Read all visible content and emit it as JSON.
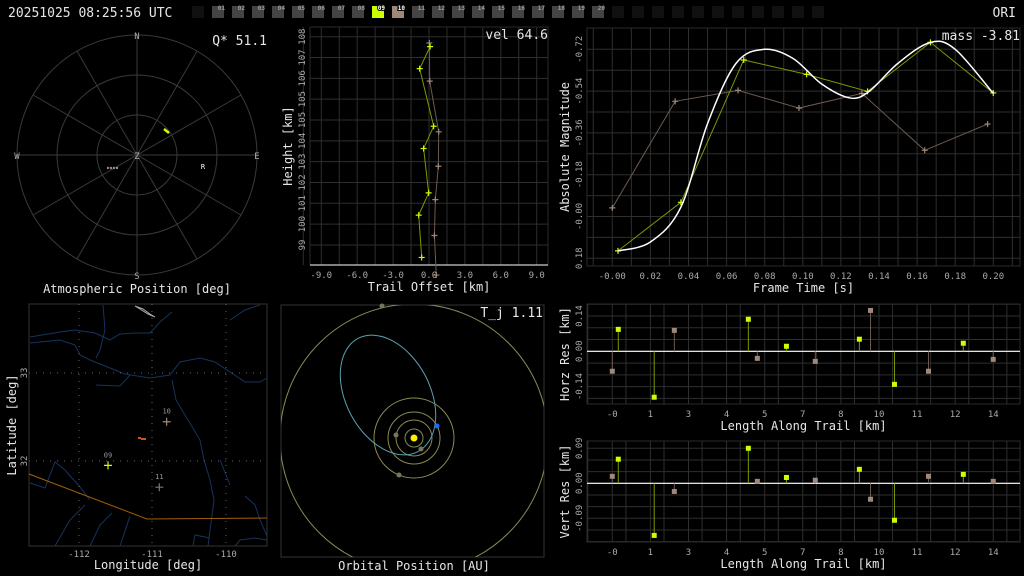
{
  "header": {
    "timestamp": "20251025 08:25:56 UTC",
    "station": "ORI",
    "frames": [
      {
        "label": "01",
        "state": "normal"
      },
      {
        "label": "02",
        "state": "normal"
      },
      {
        "label": "03",
        "state": "normal"
      },
      {
        "label": "04",
        "state": "normal"
      },
      {
        "label": "05",
        "state": "normal"
      },
      {
        "label": "06",
        "state": "normal"
      },
      {
        "label": "07",
        "state": "normal"
      },
      {
        "label": "08",
        "state": "normal"
      },
      {
        "label": "09",
        "state": "primary"
      },
      {
        "label": "10",
        "state": "secondary"
      },
      {
        "label": "11",
        "state": "normal"
      },
      {
        "label": "12",
        "state": "normal"
      },
      {
        "label": "13",
        "state": "normal"
      },
      {
        "label": "14",
        "state": "normal"
      },
      {
        "label": "15",
        "state": "normal"
      },
      {
        "label": "16",
        "state": "normal"
      },
      {
        "label": "17",
        "state": "normal"
      },
      {
        "label": "18",
        "state": "normal"
      },
      {
        "label": "19",
        "state": "normal"
      },
      {
        "label": "20",
        "state": "normal"
      }
    ]
  },
  "colors": {
    "primary": "#ccff00",
    "secondary": "#a08878",
    "line_primary": "#7a9900",
    "line_secondary": "#6e5a50",
    "grid": "#2e2e2e",
    "fit": "#ffffff",
    "river": "#16335e",
    "border": "#a0600a",
    "orbit": "#8a8a55",
    "comet_orbit": "#5aa0b0",
    "sun": "#ffee00",
    "meteor": "#1e6cff"
  },
  "polar": {
    "title": "Atmospheric Position [deg]",
    "stat": "Q* 51.1",
    "cardinals": {
      "n": "N",
      "s": "S",
      "e": "E",
      "w": "W",
      "z": "Z"
    },
    "radiant_label": "R"
  },
  "map": {
    "xlabel": "Longitude [deg]",
    "ylabel": "Latitude [deg]",
    "xticks": [
      "-112",
      "-111",
      "-110"
    ],
    "yticks": [
      "33",
      "32"
    ],
    "stations": [
      {
        "label": "09",
        "lon": -111.6,
        "lat": 31.95,
        "color": "#ccff00"
      },
      {
        "label": "10",
        "lon": -110.8,
        "lat": 32.45,
        "color": "#a08878"
      },
      {
        "label": "11",
        "lon": -110.9,
        "lat": 31.7,
        "color": "#777777"
      }
    ]
  },
  "orbit": {
    "title": "Orbital Position [AU]",
    "stat": "T_j 1.11"
  },
  "chart_data": [
    {
      "type": "line",
      "id": "magnitude",
      "stat": "mass -3.81",
      "xlabel": "Frame Time [s]",
      "ylabel": "Absolute Magnitude",
      "xlim": [
        -0.013,
        0.215
      ],
      "ylim": [
        0.2,
        -0.77
      ],
      "xticks": [
        "-0.00",
        "0.02",
        "0.04",
        "0.06",
        "0.08",
        "0.10",
        "0.12",
        "0.14",
        "0.16",
        "0.18",
        "0.20"
      ],
      "yticks": [
        "-0.72",
        "-0.54",
        "-0.36",
        "-0.18",
        "-0.00",
        "0.18"
      ],
      "grid": true,
      "series": [
        {
          "station": "09",
          "x": [
            0.003,
            0.036,
            0.069,
            0.102,
            0.134,
            0.167,
            0.2
          ],
          "y": [
            0.148,
            -0.061,
            -0.674,
            -0.612,
            -0.539,
            -0.75,
            -0.532
          ]
        },
        {
          "station": "10",
          "x": [
            0.0,
            0.033,
            0.066,
            0.098,
            0.131,
            0.164,
            0.197
          ],
          "y": [
            -0.037,
            -0.496,
            -0.543,
            -0.467,
            -0.53,
            -0.285,
            -0.398
          ]
        },
        {
          "fit": true,
          "x": [
            0.003,
            0.02,
            0.036,
            0.05,
            0.065,
            0.08,
            0.095,
            0.11,
            0.125,
            0.135,
            0.15,
            0.167,
            0.18,
            0.2
          ],
          "y": [
            0.148,
            0.11,
            -0.04,
            -0.4,
            -0.66,
            -0.72,
            -0.68,
            -0.57,
            -0.51,
            -0.54,
            -0.66,
            -0.75,
            -0.72,
            -0.53
          ]
        }
      ]
    },
    {
      "type": "line",
      "id": "height",
      "stat": "vel 64.6",
      "xlabel": "Trail Offset [km]",
      "ylabel": "Height [km]",
      "xlim": [
        -9,
        9
      ],
      "ylim": [
        99,
        108
      ],
      "xticks": [
        "-9.0",
        "-6.0",
        "-3.0",
        "0.0",
        "3.0",
        "6.0",
        "9.0"
      ],
      "yticks": [
        "108",
        "107",
        "106",
        "105",
        "105",
        "104",
        "103",
        "102",
        "101",
        "100",
        "99"
      ],
      "grid": true,
      "series": [
        {
          "station": "09",
          "x": [
            0.09,
            -0.78,
            0.39,
            -0.45,
            -0.03,
            -0.86,
            -0.61
          ],
          "y": [
            107.57,
            106.62,
            104.13,
            103.17,
            101.25,
            100.29,
            98.46
          ]
        },
        {
          "station": "10",
          "x": [
            0.03,
            0.06,
            0.81,
            0.78,
            0.53,
            0.45,
            0.61
          ],
          "y": [
            107.73,
            106.08,
            103.89,
            102.4,
            100.96,
            99.41,
            97.7
          ]
        }
      ]
    },
    {
      "type": "scatter",
      "id": "horz_res",
      "xlabel": "Length Along Trail [km]",
      "ylabel": "Horz Res [km]",
      "xlim": [
        0,
        14
      ],
      "ylim": [
        -0.14,
        0.14
      ],
      "xticks": [
        "-0",
        "1",
        "3",
        "4",
        "5",
        "7",
        "8",
        "10",
        "11",
        "12",
        "14"
      ],
      "yticks": [
        "0.14",
        "0.00",
        "-0.14"
      ],
      "grid": true,
      "series": [
        {
          "station": "09",
          "x": [
            0.22,
            1.54,
            5.0,
            6.4,
            9.08,
            10.37,
            12.9
          ],
          "y": [
            0.087,
            -0.182,
            0.127,
            0.02,
            0.048,
            -0.131,
            0.032
          ]
        },
        {
          "station": "10",
          "x": [
            0,
            2.28,
            5.33,
            7.46,
            9.49,
            11.62,
            14
          ],
          "y": [
            -0.079,
            0.083,
            -0.028,
            -0.04,
            0.162,
            -0.079,
            -0.032
          ]
        }
      ]
    },
    {
      "type": "scatter",
      "id": "vert_res",
      "xlabel": "Length Along Trail [km]",
      "ylabel": "Vert Res [km]",
      "xlim": [
        0,
        14
      ],
      "ylim": [
        -0.09,
        0.09
      ],
      "xticks": [
        "-0",
        "1",
        "3",
        "4",
        "5",
        "7",
        "8",
        "10",
        "11",
        "12",
        "14"
      ],
      "yticks": [
        "0.09",
        "0.00",
        "-0.09"
      ],
      "grid": true,
      "series": [
        {
          "station": "09",
          "x": [
            0.22,
            1.54,
            5.0,
            6.4,
            9.08,
            10.37,
            12.9
          ],
          "y": [
            0.062,
            -0.134,
            0.09,
            0.015,
            0.036,
            -0.095,
            0.023
          ]
        },
        {
          "station": "10",
          "x": [
            0,
            2.28,
            5.33,
            7.46,
            9.49,
            11.62,
            14
          ],
          "y": [
            0.018,
            -0.021,
            0.005,
            0.008,
            -0.041,
            0.018,
            0.005
          ]
        }
      ]
    }
  ]
}
